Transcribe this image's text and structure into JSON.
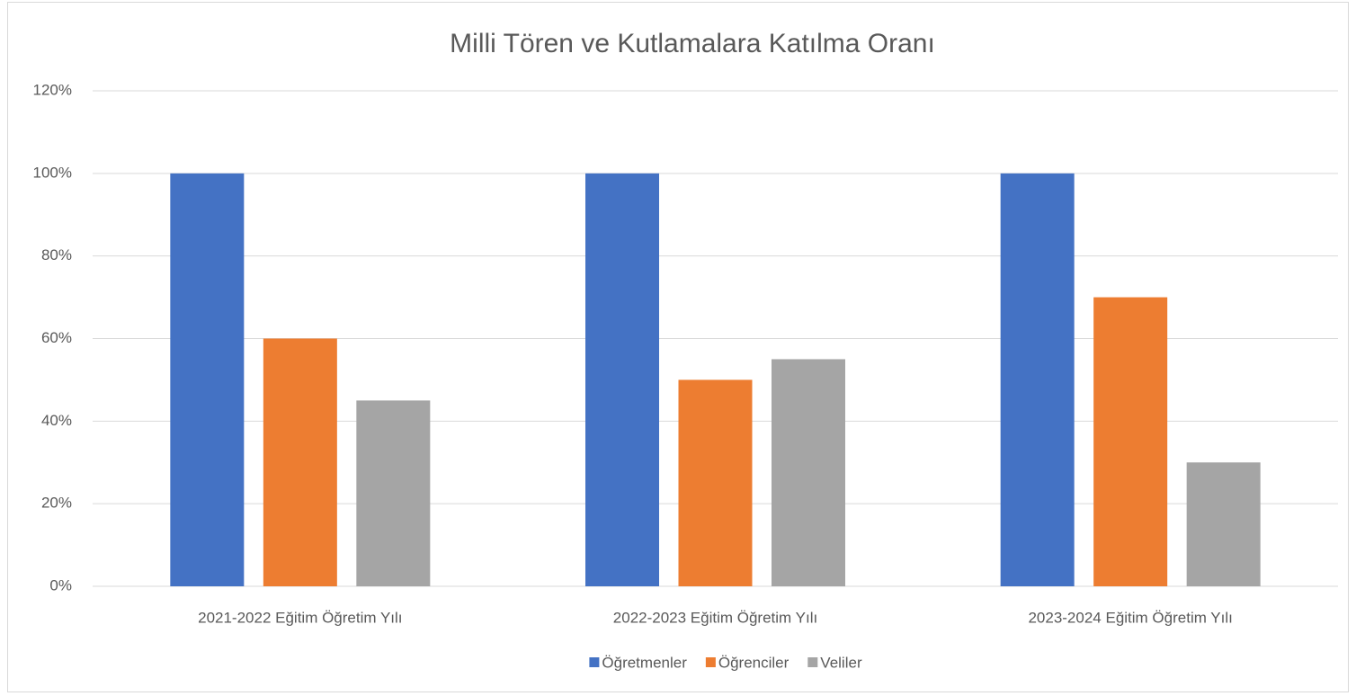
{
  "chart_data": {
    "type": "bar",
    "title": "Milli Tören ve Kutlamalara Katılma Oranı",
    "categories": [
      "2021-2022 Eğitim Öğretim Yılı",
      "2022-2023 Eğitim Öğretim Yılı",
      "2023-2024 Eğitim Öğretim Yılı"
    ],
    "series": [
      {
        "name": "Öğretmenler",
        "color": "#4472c4",
        "values": [
          100,
          100,
          100
        ]
      },
      {
        "name": "Öğrenciler",
        "color": "#ed7d31",
        "values": [
          60,
          50,
          70
        ]
      },
      {
        "name": "Veliler",
        "color": "#a5a5a5",
        "values": [
          45,
          55,
          30
        ]
      }
    ],
    "ylim": [
      0,
      120
    ],
    "yticks": [
      {
        "value": 0,
        "label": "0%"
      },
      {
        "value": 20,
        "label": "20%"
      },
      {
        "value": 40,
        "label": "40%"
      },
      {
        "value": 60,
        "label": "60%"
      },
      {
        "value": 80,
        "label": "80%"
      },
      {
        "value": 100,
        "label": "100%"
      },
      {
        "value": 120,
        "label": "120%"
      }
    ],
    "grid": true,
    "legend": "bottom"
  }
}
